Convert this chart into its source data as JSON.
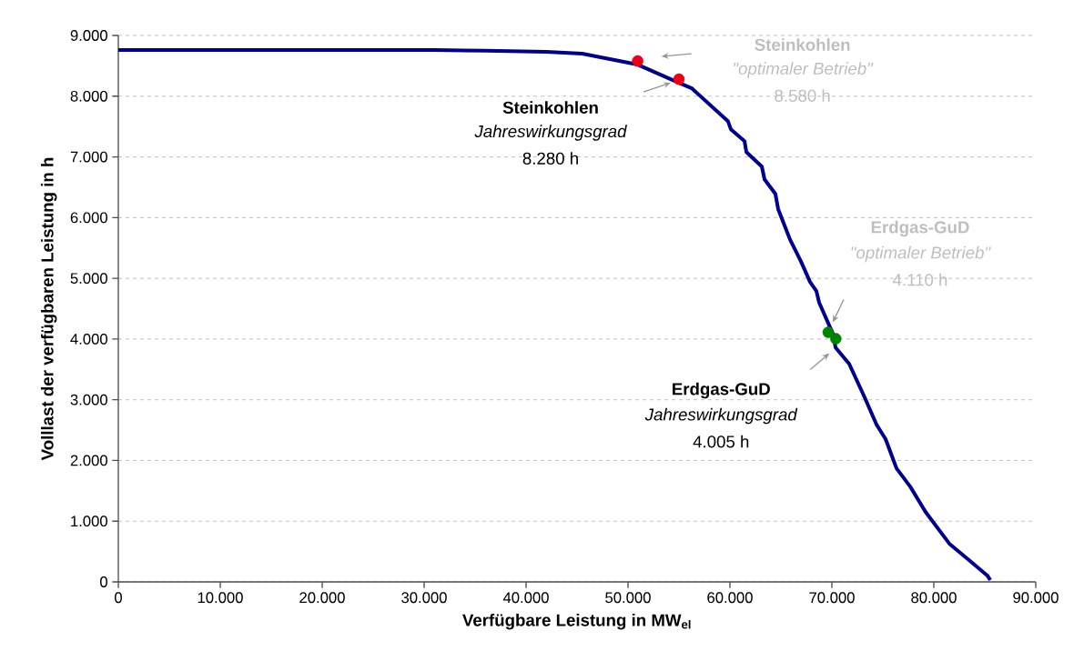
{
  "chart_data": {
    "type": "line",
    "xlabel": "Verfügbare Leistung in MW$_{el}$",
    "ylabel": "Volllast der verfügbaren Leistung in h",
    "xlim": [
      0,
      90000
    ],
    "ylim": [
      0,
      9000
    ],
    "xticks": [
      {
        "value": 0,
        "label": "0"
      },
      {
        "value": 10000,
        "label": "10.000"
      },
      {
        "value": 20000,
        "label": "20.000"
      },
      {
        "value": 30000,
        "label": "30.000"
      },
      {
        "value": 40000,
        "label": "40.000"
      },
      {
        "value": 50000,
        "label": "50.000"
      },
      {
        "value": 60000,
        "label": "60.000"
      },
      {
        "value": 70000,
        "label": "70.000"
      },
      {
        "value": 80000,
        "label": "80.000"
      },
      {
        "value": 90000,
        "label": "90.000"
      }
    ],
    "yticks": [
      {
        "value": 0,
        "label": "0"
      },
      {
        "value": 1000,
        "label": "1.000"
      },
      {
        "value": 2000,
        "label": "2.000"
      },
      {
        "value": 3000,
        "label": "3.000"
      },
      {
        "value": 4000,
        "label": "4.000"
      },
      {
        "value": 5000,
        "label": "5.000"
      },
      {
        "value": 6000,
        "label": "6.000"
      },
      {
        "value": 7000,
        "label": "7.000"
      },
      {
        "value": 8000,
        "label": "8.000"
      },
      {
        "value": 9000,
        "label": "9.000"
      }
    ],
    "grid": "y",
    "series": [
      {
        "color": "#000080",
        "marker": "none",
        "line_style": "solid",
        "x": [
          0,
          24000,
          31000,
          36000,
          42000,
          45500,
          50950,
          55000,
          56250,
          59800,
          60090,
          61430,
          61610,
          63130,
          63390,
          64460,
          64730,
          65890,
          66960,
          67860,
          68480,
          68750,
          70090,
          70360,
          71700,
          73210,
          74380,
          75270,
          76340,
          77680,
          79200,
          81520,
          83660,
          85270,
          85540
        ],
        "values": [
          8760,
          8760,
          8760,
          8750,
          8730,
          8700,
          8520,
          8220,
          8130,
          7590,
          7455,
          7260,
          7080,
          6840,
          6630,
          6390,
          6140,
          5640,
          5280,
          4940,
          4790,
          4600,
          4090,
          3860,
          3590,
          3040,
          2590,
          2350,
          1870,
          1570,
          1150,
          630,
          330,
          100,
          30
        ]
      },
      {
        "type": "scatter",
        "color": "#e8001c",
        "marker": "circle",
        "x": [
          50950,
          55000
        ],
        "values": [
          8580,
          8280
        ]
      },
      {
        "type": "scatter",
        "color": "#008000",
        "marker": "circle",
        "x": [
          69640,
          70380
        ],
        "values": [
          4110,
          4005
        ]
      }
    ],
    "annotations": [
      "Steinkohlen",
      "Jahreswirkungsgrad",
      "8.280 h",
      "Steinkohlen",
      "\"optimaler Betrieb\"",
      "8.580 h",
      "Erdgas-GuD",
      "\"optimaler Betrieb\"",
      "4.110 h",
      "Erdgas-GuD",
      "Jahreswirkungsgrad",
      "4.005 h"
    ]
  }
}
